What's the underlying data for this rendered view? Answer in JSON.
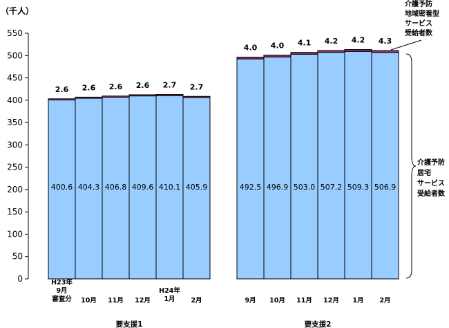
{
  "chart_data": {
    "type": "bar",
    "stacked": true,
    "unit": "（千人）",
    "ylim": [
      0,
      550
    ],
    "yticks": [
      0,
      50,
      100,
      150,
      200,
      250,
      300,
      350,
      400,
      450,
      500,
      550
    ],
    "groups": [
      {
        "name": "要支援1",
        "categories": [
          [
            "H23年",
            "9月",
            "審査分"
          ],
          [
            "10月"
          ],
          [
            "11月"
          ],
          [
            "12月"
          ],
          [
            "H24年",
            "1月"
          ],
          [
            "2月"
          ]
        ],
        "series": [
          {
            "name": "介護予防居宅サービス受給者数",
            "values": [
              400.6,
              404.3,
              406.8,
              409.6,
              410.1,
              405.9
            ]
          },
          {
            "name": "介護予防地域密着型サービス受給者数",
            "values": [
              2.6,
              2.6,
              2.6,
              2.6,
              2.7,
              2.7
            ]
          }
        ]
      },
      {
        "name": "要支援2",
        "categories": [
          [
            "9月"
          ],
          [
            "10月"
          ],
          [
            "11月"
          ],
          [
            "12月"
          ],
          [
            "1月"
          ],
          [
            "2月"
          ]
        ],
        "series": [
          {
            "name": "介護予防居宅サービス受給者数",
            "values": [
              492.5,
              496.9,
              503.0,
              507.2,
              509.3,
              506.9
            ]
          },
          {
            "name": "介護予防地域密着型サービス受給者数",
            "values": [
              4.0,
              4.0,
              4.1,
              4.2,
              4.2,
              4.3
            ]
          }
        ]
      }
    ],
    "legend": [
      {
        "lines": [
          "介護予防",
          "地域密着型",
          "サービス",
          "受給者数"
        ],
        "placement": "top-right"
      },
      {
        "lines": [
          "介護予防",
          "居宅",
          "サービス",
          "受給者数"
        ],
        "placement": "right"
      }
    ],
    "colors": {
      "base": "#99ccff",
      "top": "#993366",
      "outline": "#000000"
    },
    "grid": false
  }
}
